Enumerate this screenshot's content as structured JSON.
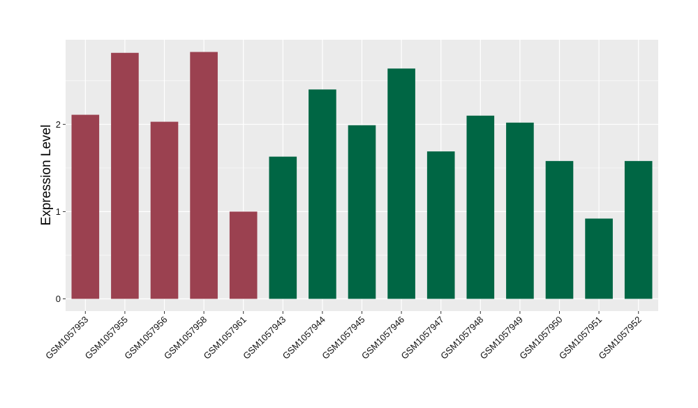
{
  "chart_data": {
    "type": "bar",
    "categories": [
      "GSM1057953",
      "GSM1057955",
      "GSM1057956",
      "GSM1057958",
      "GSM1057961",
      "GSM1057943",
      "GSM1057944",
      "GSM1057945",
      "GSM1057946",
      "GSM1057947",
      "GSM1057948",
      "GSM1057949",
      "GSM1057950",
      "GSM1057951",
      "GSM1057952"
    ],
    "values": [
      2.11,
      2.82,
      2.03,
      2.83,
      1.0,
      1.63,
      2.4,
      1.99,
      2.64,
      1.69,
      2.1,
      2.02,
      1.58,
      0.92,
      1.58
    ],
    "groups": [
      "a",
      "a",
      "a",
      "a",
      "a",
      "b",
      "b",
      "b",
      "b",
      "b",
      "b",
      "b",
      "b",
      "b",
      "b"
    ],
    "group_colors": {
      "a": "#9b4150",
      "b": "#006644"
    },
    "ylabel": "Expression Level",
    "xlabel": "",
    "title": "",
    "yticks": [
      0,
      1,
      2
    ],
    "ylim": [
      -0.14,
      2.97
    ],
    "grid": true,
    "panel_background": "#ebebeb",
    "gridline_color": "#ffffff",
    "legend": "none"
  }
}
